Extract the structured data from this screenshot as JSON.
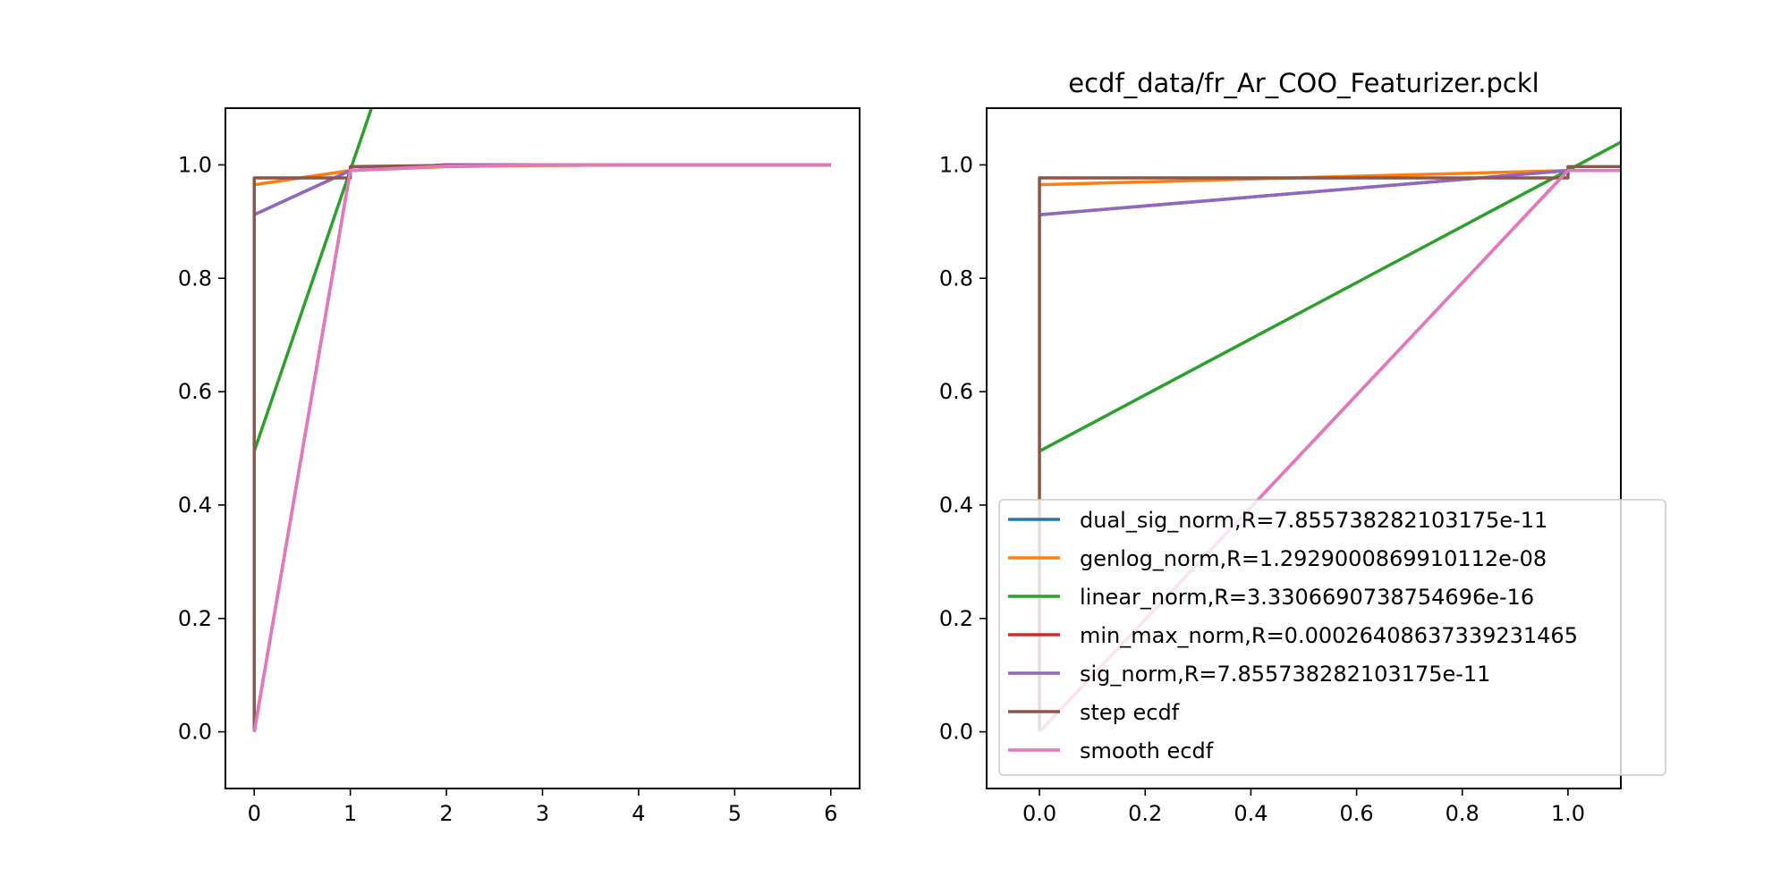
{
  "chart_data": [
    {
      "type": "line",
      "title": "",
      "xlabel": "",
      "ylabel": "",
      "xlim": [
        -0.3,
        6.3
      ],
      "ylim": [
        -0.1,
        1.1
      ],
      "xticks": [
        0,
        1,
        2,
        3,
        4,
        5,
        6
      ],
      "yticks": [
        0.0,
        0.2,
        0.4,
        0.6,
        0.8,
        1.0
      ],
      "xtick_labels": [
        "0",
        "1",
        "2",
        "3",
        "4",
        "5",
        "6"
      ],
      "ytick_labels": [
        "0.0",
        "0.2",
        "0.4",
        "0.6",
        "0.8",
        "1.0"
      ],
      "grid": false,
      "series": [
        {
          "name": "dual_sig_norm,R=7.855738282103175e-11",
          "color": "#1f77b4",
          "x": [
            0,
            1,
            2,
            3,
            4,
            5,
            6
          ],
          "y": [
            0.912,
            0.99,
            1.0,
            1.0,
            1.0,
            1.0,
            1.0
          ]
        },
        {
          "name": "genlog_norm,R=1.2929000869910112e-08",
          "color": "#ff7f0e",
          "x": [
            0,
            1,
            2,
            3,
            4,
            5,
            6
          ],
          "y": [
            0.965,
            0.99,
            0.997,
            0.999,
            1.0,
            1.0,
            1.0
          ]
        },
        {
          "name": "linear_norm,R=3.3306690738754696e-16",
          "color": "#2ca02c",
          "x": [
            0,
            1.22
          ],
          "y": [
            0.495,
            1.1
          ]
        },
        {
          "name": "min_max_norm,R=0.00026408637339231465",
          "color": "#d62728",
          "x": [
            0,
            1,
            2,
            3,
            4,
            5,
            6
          ],
          "y": [
            0.0,
            0.99,
            1.0,
            1.0,
            1.0,
            1.0,
            1.0
          ]
        },
        {
          "name": "sig_norm,R=7.855738282103175e-11",
          "color": "#9467bd",
          "x": [
            0,
            1,
            2,
            3,
            4,
            5,
            6
          ],
          "y": [
            0.912,
            0.99,
            1.0,
            1.0,
            1.0,
            1.0,
            1.0
          ]
        },
        {
          "name": "step ecdf",
          "color": "#8c564b",
          "x": [
            0,
            0,
            1,
            1,
            2,
            3,
            4,
            5,
            6
          ],
          "y": [
            0.0,
            0.977,
            0.977,
            0.997,
            0.999,
            1.0,
            1.0,
            1.0,
            1.0
          ]
        },
        {
          "name": "smooth ecdf",
          "color": "#e377c2",
          "x": [
            0,
            1,
            2,
            3,
            4,
            5,
            6
          ],
          "y": [
            0.0,
            0.99,
            0.998,
            1.0,
            1.0,
            1.0,
            1.0
          ]
        }
      ]
    },
    {
      "type": "line",
      "title": "ecdf_data/fr_Ar_COO_Featurizer.pckl",
      "xlabel": "",
      "ylabel": "",
      "xlim": [
        -0.1,
        1.1
      ],
      "ylim": [
        -0.1,
        1.1
      ],
      "xticks": [
        0.0,
        0.2,
        0.4,
        0.6,
        0.8,
        1.0
      ],
      "yticks": [
        0.0,
        0.2,
        0.4,
        0.6,
        0.8,
        1.0
      ],
      "xtick_labels": [
        "0.0",
        "0.2",
        "0.4",
        "0.6",
        "0.8",
        "1.0"
      ],
      "ytick_labels": [
        "0.0",
        "0.2",
        "0.4",
        "0.6",
        "0.8",
        "1.0"
      ],
      "grid": false,
      "legend_position": "lower-right",
      "series": [
        {
          "name": "dual_sig_norm,R=7.855738282103175e-11",
          "color": "#1f77b4",
          "x": [
            0,
            1,
            1.1
          ],
          "y": [
            0.912,
            0.99,
            0.99
          ]
        },
        {
          "name": "genlog_norm,R=1.2929000869910112e-08",
          "color": "#ff7f0e",
          "x": [
            0,
            1,
            1.1
          ],
          "y": [
            0.965,
            0.99,
            0.99
          ]
        },
        {
          "name": "linear_norm,R=3.3306690738754696e-16",
          "color": "#2ca02c",
          "x": [
            0,
            1.1
          ],
          "y": [
            0.495,
            1.04
          ]
        },
        {
          "name": "min_max_norm,R=0.00026408637339231465",
          "color": "#d62728",
          "x": [
            0,
            1,
            1.1
          ],
          "y": [
            0.0,
            0.99,
            0.99
          ]
        },
        {
          "name": "sig_norm,R=7.855738282103175e-11",
          "color": "#9467bd",
          "x": [
            0,
            1,
            1.1
          ],
          "y": [
            0.912,
            0.99,
            0.99
          ]
        },
        {
          "name": "step ecdf",
          "color": "#8c564b",
          "x": [
            0,
            0,
            1,
            1,
            1.1
          ],
          "y": [
            0.0,
            0.977,
            0.977,
            0.997,
            0.997
          ]
        },
        {
          "name": "smooth ecdf",
          "color": "#e377c2",
          "x": [
            0,
            1,
            1.1
          ],
          "y": [
            0.0,
            0.99,
            0.99
          ]
        }
      ]
    }
  ]
}
